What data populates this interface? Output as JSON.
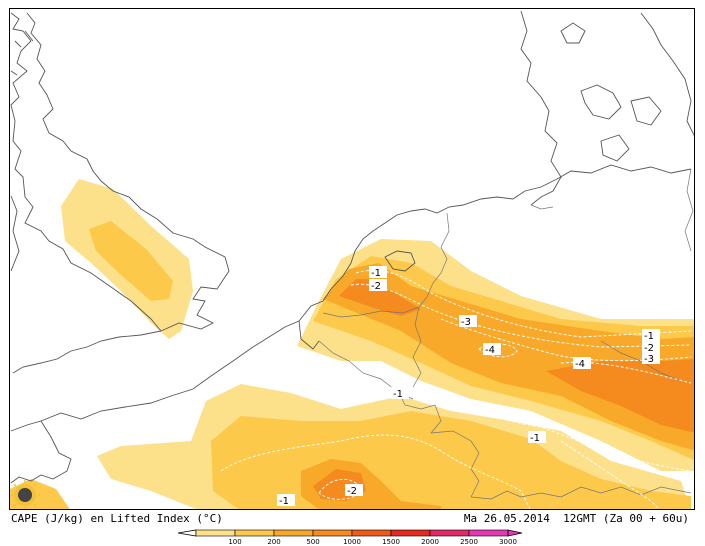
{
  "map": {
    "caption_left": "CAPE (J/kg) en Lifted Index (°C)",
    "caption_right": "Ma 26.05.2014  12GMT (Za 00 + 60u)",
    "logo_icon": "sun-logo-icon"
  },
  "legend": {
    "classes": [
      {
        "label": "100",
        "color": "#fde08a"
      },
      {
        "label": "200",
        "color": "#fcc94a"
      },
      {
        "label": "500",
        "color": "#f9a92a"
      },
      {
        "label": "1000",
        "color": "#f58a1e"
      },
      {
        "label": "1500",
        "color": "#ee5a1a"
      },
      {
        "label": "2000",
        "color": "#e52a22"
      },
      {
        "label": "2500",
        "color": "#e02a6a"
      },
      {
        "label": "3000",
        "color": "#e23ab4"
      }
    ],
    "outline_color": "#000000"
  },
  "lifted_index_labels": [
    "-1",
    "-2",
    "-3",
    "-4",
    "-1",
    "-2",
    "-3",
    "-4",
    "-1",
    "-1",
    "-1",
    "-2"
  ]
}
